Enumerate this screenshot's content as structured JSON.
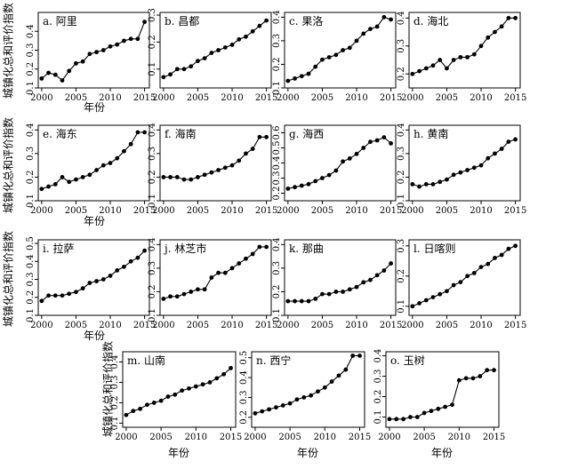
{
  "figure": {
    "ylabel": "城镇化总和评价指数",
    "xlabel": "年份"
  },
  "chart_data": [
    {
      "type": "line",
      "title": "a. 阿里",
      "x": [
        2000,
        2001,
        2002,
        2003,
        2004,
        2005,
        2006,
        2007,
        2008,
        2009,
        2010,
        2011,
        2012,
        2013,
        2014,
        2015
      ],
      "values": [
        0.15,
        0.18,
        0.17,
        0.14,
        0.19,
        0.23,
        0.24,
        0.28,
        0.29,
        0.3,
        0.32,
        0.33,
        0.35,
        0.36,
        0.36,
        0.45
      ],
      "ylim": [
        0.1,
        0.5
      ],
      "yticks": [
        0.1,
        0.2,
        0.3,
        0.4
      ],
      "xticks": [
        2000,
        2005,
        2010,
        2015
      ],
      "yticklabels": [
        "0.1",
        "0.2",
        "0.3",
        "0.4"
      ]
    },
    {
      "type": "line",
      "title": "b. 昌都",
      "x": [
        2000,
        2001,
        2002,
        2003,
        2004,
        2005,
        2006,
        2007,
        2008,
        2009,
        2010,
        2011,
        2012,
        2013,
        2014,
        2015
      ],
      "values": [
        0.07,
        0.08,
        0.1,
        0.1,
        0.11,
        0.13,
        0.14,
        0.16,
        0.17,
        0.18,
        0.19,
        0.21,
        0.22,
        0.24,
        0.26,
        0.28
      ],
      "ylim": [
        0.03,
        0.31
      ],
      "yticks": [
        0.1,
        0.2,
        0.3
      ],
      "xticks": [
        2000,
        2005,
        2010,
        2015
      ],
      "yticklabels": [
        "0.1",
        "0.2",
        "0.3"
      ]
    },
    {
      "type": "line",
      "title": "c. 果洛",
      "x": [
        2000,
        2001,
        2002,
        2003,
        2004,
        2005,
        2006,
        2007,
        2008,
        2009,
        2010,
        2011,
        2012,
        2013,
        2014,
        2015
      ],
      "values": [
        0.13,
        0.14,
        0.15,
        0.16,
        0.19,
        0.22,
        0.23,
        0.24,
        0.26,
        0.27,
        0.3,
        0.33,
        0.35,
        0.36,
        0.4,
        0.39
      ],
      "ylim": [
        0.1,
        0.42
      ],
      "yticks": [
        0.1,
        0.2,
        0.3,
        0.4
      ],
      "xticks": [
        2000,
        2005,
        2010,
        2015
      ],
      "yticklabels": [
        "0.1",
        "0.2",
        "0.3",
        "0.4"
      ]
    },
    {
      "type": "line",
      "title": "d. 海北",
      "x": [
        2000,
        2001,
        2002,
        2003,
        2004,
        2005,
        2006,
        2007,
        2008,
        2009,
        2010,
        2011,
        2012,
        2013,
        2014,
        2015
      ],
      "values": [
        0.2,
        0.21,
        0.22,
        0.23,
        0.25,
        0.22,
        0.25,
        0.26,
        0.26,
        0.27,
        0.3,
        0.33,
        0.35,
        0.37,
        0.4,
        0.4
      ],
      "ylim": [
        0.15,
        0.42
      ],
      "yticks": [
        0.2,
        0.3,
        0.4
      ],
      "xticks": [
        2000,
        2005,
        2010,
        2015
      ],
      "yticklabels": [
        "0.2",
        "0.3",
        "0.4"
      ]
    },
    {
      "type": "line",
      "title": "e. 海东",
      "x": [
        2000,
        2001,
        2002,
        2003,
        2004,
        2005,
        2006,
        2007,
        2008,
        2009,
        2010,
        2011,
        2012,
        2013,
        2014,
        2015
      ],
      "values": [
        0.15,
        0.16,
        0.17,
        0.2,
        0.18,
        0.19,
        0.2,
        0.21,
        0.23,
        0.25,
        0.26,
        0.28,
        0.31,
        0.34,
        0.39,
        0.39
      ],
      "ylim": [
        0.1,
        0.42
      ],
      "yticks": [
        0.1,
        0.2,
        0.3,
        0.4
      ],
      "xticks": [
        2000,
        2005,
        2010,
        2015
      ],
      "yticklabels": [
        "0.1",
        "0.2",
        "0.3",
        "0.4"
      ]
    },
    {
      "type": "line",
      "title": "f. 海南",
      "x": [
        2000,
        2001,
        2002,
        2003,
        2004,
        2005,
        2006,
        2007,
        2008,
        2009,
        2010,
        2011,
        2012,
        2013,
        2014,
        2015
      ],
      "values": [
        0.2,
        0.2,
        0.2,
        0.19,
        0.19,
        0.2,
        0.21,
        0.22,
        0.23,
        0.24,
        0.25,
        0.27,
        0.3,
        0.32,
        0.37,
        0.37
      ],
      "ylim": [
        0.1,
        0.42
      ],
      "yticks": [
        0.1,
        0.2,
        0.3,
        0.4
      ],
      "xticks": [
        2000,
        2005,
        2010,
        2015
      ],
      "yticklabels": [
        "0.1",
        "0.2",
        "0.3",
        "0.4"
      ]
    },
    {
      "type": "line",
      "title": "g. 海西",
      "x": [
        2000,
        2001,
        2002,
        2003,
        2004,
        2005,
        2006,
        2007,
        2008,
        2009,
        2010,
        2011,
        2012,
        2013,
        2014,
        2015
      ],
      "values": [
        0.23,
        0.24,
        0.25,
        0.26,
        0.28,
        0.3,
        0.32,
        0.35,
        0.41,
        0.43,
        0.46,
        0.5,
        0.54,
        0.55,
        0.57,
        0.53
      ],
      "ylim": [
        0.15,
        0.65
      ],
      "yticks": [
        0.2,
        0.3,
        0.4,
        0.5,
        0.6
      ],
      "xticks": [
        2000,
        2005,
        2010,
        2015
      ],
      "yticklabels": [
        "0.2",
        "0.3",
        "0.4",
        "0.5",
        "0.6"
      ]
    },
    {
      "type": "line",
      "title": "h. 黄南",
      "x": [
        2000,
        2001,
        2002,
        2003,
        2004,
        2005,
        2006,
        2007,
        2008,
        2009,
        2010,
        2011,
        2012,
        2013,
        2014,
        2015
      ],
      "values": [
        0.17,
        0.16,
        0.17,
        0.17,
        0.18,
        0.19,
        0.21,
        0.22,
        0.23,
        0.24,
        0.25,
        0.28,
        0.3,
        0.32,
        0.35,
        0.36
      ],
      "ylim": [
        0.1,
        0.42
      ],
      "yticks": [
        0.1,
        0.2,
        0.3,
        0.4
      ],
      "xticks": [
        2000,
        2005,
        2010,
        2015
      ],
      "yticklabels": [
        "0.1",
        "0.2",
        "0.3",
        "0.4"
      ]
    },
    {
      "type": "line",
      "title": "i. 拉萨",
      "x": [
        2000,
        2001,
        2002,
        2003,
        2004,
        2005,
        2006,
        2007,
        2008,
        2009,
        2010,
        2011,
        2012,
        2013,
        2014,
        2015
      ],
      "values": [
        0.18,
        0.21,
        0.21,
        0.21,
        0.22,
        0.23,
        0.25,
        0.28,
        0.29,
        0.3,
        0.32,
        0.35,
        0.37,
        0.4,
        0.42,
        0.46
      ],
      "ylim": [
        0.1,
        0.52
      ],
      "yticks": [
        0.1,
        0.2,
        0.3,
        0.4,
        0.5
      ],
      "xticks": [
        2000,
        2005,
        2010,
        2015
      ],
      "yticklabels": [
        "0.1",
        "0.2",
        "0.3",
        "0.4",
        "0.5"
      ]
    },
    {
      "type": "line",
      "title": "j. 林芝市",
      "x": [
        2000,
        2001,
        2002,
        2003,
        2004,
        2005,
        2006,
        2007,
        2008,
        2009,
        2010,
        2011,
        2012,
        2013,
        2014,
        2015
      ],
      "values": [
        0.17,
        0.18,
        0.18,
        0.19,
        0.2,
        0.21,
        0.21,
        0.26,
        0.28,
        0.28,
        0.3,
        0.32,
        0.34,
        0.36,
        0.39,
        0.39
      ],
      "ylim": [
        0.1,
        0.42
      ],
      "yticks": [
        0.1,
        0.2,
        0.3,
        0.4
      ],
      "xticks": [
        2000,
        2005,
        2010,
        2015
      ],
      "yticklabels": [
        "0.1",
        "0.2",
        "0.3",
        "0.4"
      ]
    },
    {
      "type": "line",
      "title": "k. 那曲",
      "x": [
        2000,
        2001,
        2002,
        2003,
        2004,
        2005,
        2006,
        2007,
        2008,
        2009,
        2010,
        2011,
        2012,
        2013,
        2014,
        2015
      ],
      "values": [
        0.16,
        0.16,
        0.16,
        0.16,
        0.17,
        0.19,
        0.19,
        0.2,
        0.2,
        0.21,
        0.22,
        0.24,
        0.25,
        0.27,
        0.29,
        0.32
      ],
      "ylim": [
        0.1,
        0.42
      ],
      "yticks": [
        0.1,
        0.2,
        0.3,
        0.4
      ],
      "xticks": [
        2000,
        2005,
        2010,
        2015
      ],
      "yticklabels": [
        "0.1",
        "0.2",
        "0.3",
        "0.4"
      ]
    },
    {
      "type": "line",
      "title": "l. 日喀则",
      "x": [
        2000,
        2001,
        2002,
        2003,
        2004,
        2005,
        2006,
        2007,
        2008,
        2009,
        2010,
        2011,
        2012,
        2013,
        2014,
        2015
      ],
      "values": [
        0.1,
        0.11,
        0.12,
        0.13,
        0.14,
        0.15,
        0.17,
        0.18,
        0.2,
        0.21,
        0.23,
        0.24,
        0.26,
        0.27,
        0.29,
        0.3
      ],
      "ylim": [
        0.07,
        0.32
      ],
      "yticks": [
        0.1,
        0.2,
        0.3
      ],
      "xticks": [
        2000,
        2005,
        2010,
        2015
      ],
      "yticklabels": [
        "0.1",
        "0.2",
        "0.3"
      ]
    },
    {
      "type": "line",
      "title": "m. 山南",
      "x": [
        2000,
        2001,
        2002,
        2003,
        2004,
        2005,
        2006,
        2007,
        2008,
        2009,
        2010,
        2011,
        2012,
        2013,
        2014,
        2015
      ],
      "values": [
        0.14,
        0.16,
        0.17,
        0.19,
        0.2,
        0.21,
        0.23,
        0.24,
        0.26,
        0.27,
        0.28,
        0.29,
        0.3,
        0.32,
        0.34,
        0.37
      ],
      "ylim": [
        0.08,
        0.45
      ],
      "yticks": [
        0.1,
        0.2,
        0.3,
        0.4
      ],
      "xticks": [
        2000,
        2005,
        2010,
        2015
      ],
      "yticklabels": [
        "0.1",
        "0.2",
        "0.3",
        "0.4"
      ]
    },
    {
      "type": "line",
      "title": "n. 西宁",
      "x": [
        2000,
        2001,
        2002,
        2003,
        2004,
        2005,
        2006,
        2007,
        2008,
        2009,
        2010,
        2011,
        2012,
        2013,
        2014,
        2015
      ],
      "values": [
        0.22,
        0.23,
        0.24,
        0.25,
        0.26,
        0.27,
        0.29,
        0.3,
        0.31,
        0.33,
        0.35,
        0.38,
        0.41,
        0.44,
        0.51,
        0.51
      ],
      "ylim": [
        0.15,
        0.53
      ],
      "yticks": [
        0.2,
        0.3,
        0.4,
        0.5
      ],
      "xticks": [
        2000,
        2005,
        2010,
        2015
      ],
      "yticklabels": [
        "0.2",
        "0.3",
        "0.4",
        "0.5"
      ]
    },
    {
      "type": "line",
      "title": "o. 玉树",
      "x": [
        2000,
        2001,
        2002,
        2003,
        2004,
        2005,
        2006,
        2007,
        2008,
        2009,
        2010,
        2011,
        2012,
        2013,
        2014,
        2015
      ],
      "values": [
        0.09,
        0.09,
        0.09,
        0.1,
        0.1,
        0.12,
        0.13,
        0.14,
        0.15,
        0.16,
        0.28,
        0.29,
        0.29,
        0.3,
        0.33,
        0.33
      ],
      "ylim": [
        0.05,
        0.42
      ],
      "yticks": [
        0.1,
        0.2,
        0.3,
        0.4
      ],
      "xticks": [
        2000,
        2005,
        2010,
        2015
      ],
      "yticklabels": [
        "0.1",
        "0.2",
        "0.3",
        "0.4"
      ]
    }
  ]
}
